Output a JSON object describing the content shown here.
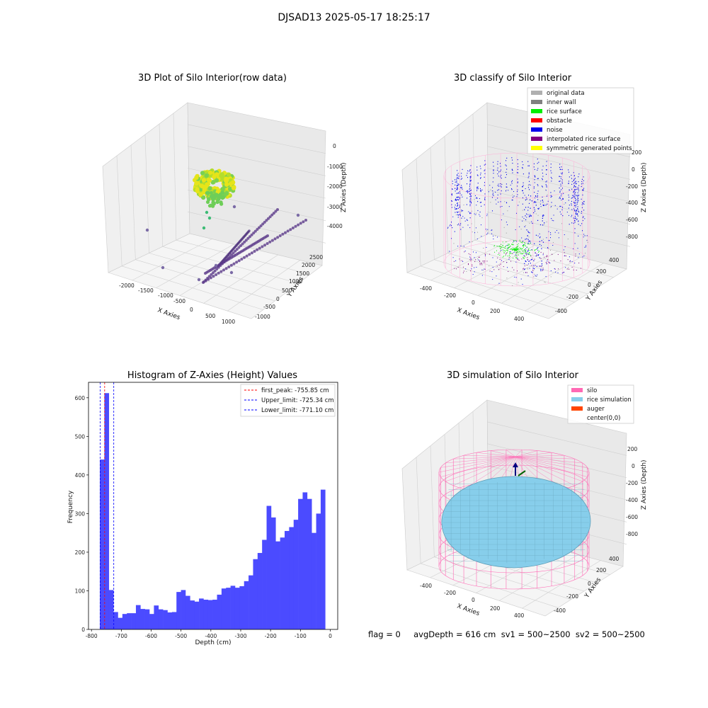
{
  "figure": {
    "suptitle": "DJSAD13 2025-05-17 18:25:17",
    "status_line": "flag = 0     avgDepth = 616 cm  sv1 = 500~2500  sv2 = 500~2500"
  },
  "colors": {
    "hist_bar": "#4b4bff",
    "red_line": "#ff0000",
    "blue_line": "#0000ff",
    "silo_pink": "#ff69b4",
    "rice_blue": "#87ceeb",
    "noise_blue": "#0000ee",
    "rice_green": "#00ee00",
    "interp_purple": "#800080"
  },
  "chart_data": [
    {
      "type": "scatter",
      "projection": "3d",
      "title": "3D Plot of Silo Interior(row data)",
      "xlabel": "X Axies",
      "ylabel": "Y Axies",
      "zlabel": "Z Axies (Depth)",
      "xticks": [
        "-2000",
        "-1500",
        "-1000",
        "-500",
        "0",
        "500",
        "1000"
      ],
      "yticks": [
        "-1000",
        "-500",
        "0",
        "500",
        "1000",
        "1500",
        "2000",
        "2500"
      ],
      "zticks": [
        "0",
        "-1000",
        "-2000",
        "-3000",
        "-4000"
      ],
      "colormap": "viridis"
    },
    {
      "type": "scatter",
      "projection": "3d",
      "title": "3D classify of Silo Interior",
      "xlabel": "X Axies",
      "ylabel": "Y Axies",
      "zlabel": "Z Axies (Depth)",
      "xticks": [
        "-400",
        "-200",
        "0",
        "200",
        "400"
      ],
      "yticks": [
        "-400",
        "-200",
        "0",
        "200",
        "400"
      ],
      "zticks": [
        "200",
        "0",
        "-200",
        "-400",
        "-600",
        "-800"
      ],
      "legend_position": "upper-right",
      "legend": [
        {
          "label": "original data",
          "color": "#b0b0b0"
        },
        {
          "label": "inner wall",
          "color": "#808080"
        },
        {
          "label": "rice surface",
          "color": "#00ee00"
        },
        {
          "label": "obstacle",
          "color": "#ff0000"
        },
        {
          "label": "noise",
          "color": "#0000ee"
        },
        {
          "label": "interpolated rice surface",
          "color": "#800080"
        },
        {
          "label": "symmetric generated points",
          "color": "#ffff00"
        }
      ]
    },
    {
      "type": "bar",
      "title": "Histogram of Z-Axies (Height) Values",
      "xlabel": "Depth (cm)",
      "ylabel": "Frequency",
      "xlim": [
        -810,
        25
      ],
      "ylim": [
        0,
        640
      ],
      "xticks": [
        -800,
        -700,
        -600,
        -500,
        -400,
        -300,
        -200,
        -100,
        0
      ],
      "yticks": [
        0,
        100,
        200,
        300,
        400,
        500,
        600
      ],
      "bin_start": -772,
      "bin_width": 15.1,
      "values": [
        440,
        612,
        102,
        45,
        30,
        40,
        42,
        42,
        63,
        53,
        52,
        40,
        62,
        52,
        50,
        44,
        45,
        97,
        102,
        87,
        75,
        72,
        80,
        77,
        76,
        77,
        90,
        106,
        108,
        113,
        108,
        112,
        125,
        140,
        182,
        198,
        232,
        320,
        290,
        228,
        238,
        255,
        265,
        284,
        338,
        355,
        338,
        250,
        300,
        362
      ],
      "lines": [
        {
          "label": "first_peak: -755.85 cm",
          "value": -755.85,
          "color": "#ff0000"
        },
        {
          "label": "Upper_limit: -725.34 cm",
          "value": -725.34,
          "color": "#0000ff"
        },
        {
          "label": "Lower_limit: -771.10 cm",
          "value": -771.1,
          "color": "#0000ff"
        }
      ],
      "legend_position": "upper-right"
    },
    {
      "type": "surface",
      "projection": "3d",
      "title": "3D simulation of Silo Interior",
      "xlabel": "X Axies",
      "ylabel": "Y Axies",
      "zlabel": "Z Axies (Depth)",
      "xticks": [
        "-400",
        "-200",
        "0",
        "200",
        "400"
      ],
      "yticks": [
        "-400",
        "-200",
        "0",
        "200",
        "400"
      ],
      "zticks": [
        "200",
        "0",
        "-200",
        "-400",
        "-600",
        "-800"
      ],
      "legend_position": "upper-right",
      "legend": [
        {
          "label": "silo",
          "color": "#ff69b4"
        },
        {
          "label": "rice simulation",
          "color": "#87ceeb"
        },
        {
          "label": "auger",
          "color": "#ff4500"
        },
        {
          "label": "center(0,0)",
          "color": ""
        }
      ]
    }
  ]
}
